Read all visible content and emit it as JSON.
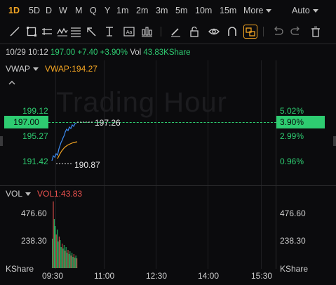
{
  "timeframes": {
    "items": [
      "1D",
      "5D",
      "D",
      "W",
      "M",
      "Q",
      "Y",
      "1m",
      "2m",
      "3m",
      "5m",
      "10m",
      "15m"
    ],
    "active": "1D",
    "more_label": "More",
    "mode_label": "Auto"
  },
  "tools": [
    "line-tool-icon",
    "rect-select-icon",
    "horizontal-ray-icon",
    "wave-icon",
    "pitchfork-icon",
    "arrow-icon",
    "text-tool-icon",
    "label-tool-icon",
    "bar-pattern-icon",
    "pencil-icon",
    "lock-icon",
    "eye-icon",
    "magnet-icon",
    "layers-icon",
    "undo-icon",
    "redo-icon",
    "trash-icon"
  ],
  "info": {
    "datetime": "10/29 10:12",
    "price": "197.00",
    "change": "+7.40",
    "change_pct": "+3.90%",
    "vol_label": "Vol",
    "vol_value": "43.83KShare"
  },
  "main": {
    "indicator": "VWAP",
    "indicator_value": "VWAP:194.27",
    "watermark": "Trading Hour",
    "left_ticks": [
      "199.12",
      "195.27",
      "191.42"
    ],
    "right_ticks": [
      "5.02%",
      "2.99%",
      "0.96%"
    ],
    "current_price": "197.00",
    "current_pct": "3.90%",
    "high_marker": "197.26",
    "low_marker": "190.87"
  },
  "volume": {
    "label": "VOL",
    "value": "VOL1:43.83",
    "ticks": [
      "476.60",
      "238.30"
    ],
    "unit": "KShare"
  },
  "x_axis": [
    "09:30",
    "11:00",
    "12:30",
    "14:00",
    "15:30"
  ],
  "colors": {
    "up": "#2ecc71",
    "vwap": "#f5a623",
    "line": "#3d8df5",
    "down": "#ef5350"
  }
}
